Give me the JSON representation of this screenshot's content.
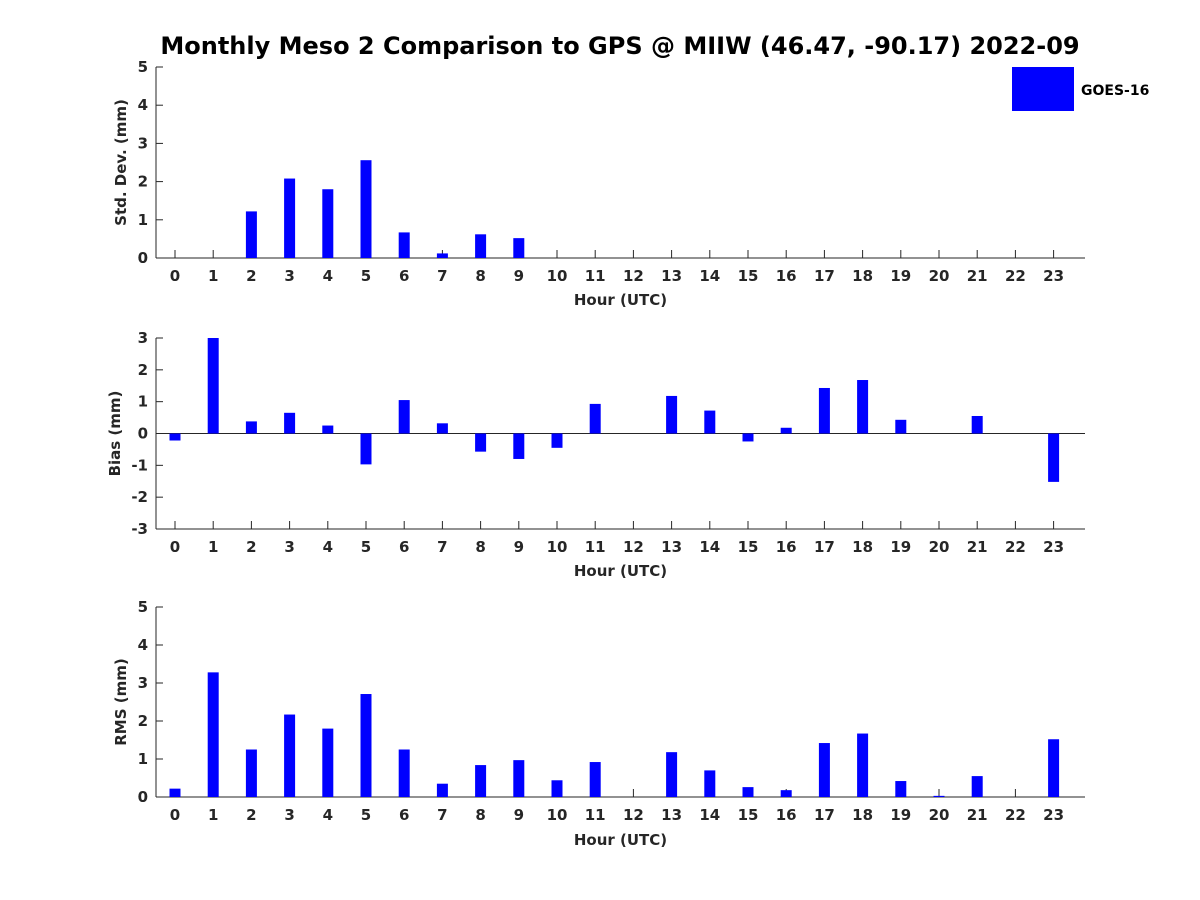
{
  "title": "Monthly Meso 2 Comparison to GPS @ MIIW (46.47, -90.17) 2022-09",
  "legend": {
    "label": "GOES-16",
    "color": "#0000ff",
    "position": "top-right"
  },
  "chart_data": [
    {
      "type": "bar",
      "ylabel": "Std. Dev. (mm)",
      "xlabel": "Hour (UTC)",
      "ylim": [
        0,
        5
      ],
      "yticks": [
        0,
        1,
        2,
        3,
        4,
        5
      ],
      "categories": [
        0,
        1,
        2,
        3,
        4,
        5,
        6,
        7,
        8,
        9,
        10,
        11,
        12,
        13,
        14,
        15,
        16,
        17,
        18,
        19,
        20,
        21,
        22,
        23
      ],
      "values": [
        null,
        null,
        1.22,
        2.08,
        1.8,
        2.56,
        0.67,
        0.12,
        0.62,
        0.52,
        null,
        null,
        null,
        null,
        null,
        null,
        null,
        null,
        null,
        null,
        null,
        null,
        null,
        null
      ],
      "color": "#0000ff",
      "grid": false
    },
    {
      "type": "bar",
      "ylabel": "Bias (mm)",
      "xlabel": "Hour (UTC)",
      "ylim": [
        -3,
        3
      ],
      "yticks": [
        -3,
        -2,
        -1,
        0,
        1,
        2,
        3
      ],
      "categories": [
        0,
        1,
        2,
        3,
        4,
        5,
        6,
        7,
        8,
        9,
        10,
        11,
        12,
        13,
        14,
        15,
        16,
        17,
        18,
        19,
        20,
        21,
        22,
        23
      ],
      "values": [
        -0.22,
        3.0,
        0.38,
        0.65,
        0.25,
        -0.97,
        1.05,
        0.32,
        -0.57,
        -0.8,
        -0.45,
        0.93,
        null,
        1.18,
        0.72,
        -0.25,
        0.18,
        1.43,
        1.68,
        0.43,
        null,
        0.55,
        null,
        -1.52
      ],
      "color": "#0000ff",
      "grid": false
    },
    {
      "type": "bar",
      "ylabel": "RMS (mm)",
      "xlabel": "Hour (UTC)",
      "ylim": [
        0,
        5
      ],
      "yticks": [
        0,
        1,
        2,
        3,
        4,
        5
      ],
      "categories": [
        0,
        1,
        2,
        3,
        4,
        5,
        6,
        7,
        8,
        9,
        10,
        11,
        12,
        13,
        14,
        15,
        16,
        17,
        18,
        19,
        20,
        21,
        22,
        23
      ],
      "values": [
        0.22,
        3.28,
        1.25,
        2.17,
        1.8,
        2.71,
        1.25,
        0.35,
        0.84,
        0.97,
        0.44,
        0.92,
        null,
        1.18,
        0.7,
        0.26,
        0.18,
        1.42,
        1.67,
        0.42,
        0.03,
        0.55,
        null,
        1.52
      ],
      "color": "#0000ff",
      "grid": false
    }
  ]
}
